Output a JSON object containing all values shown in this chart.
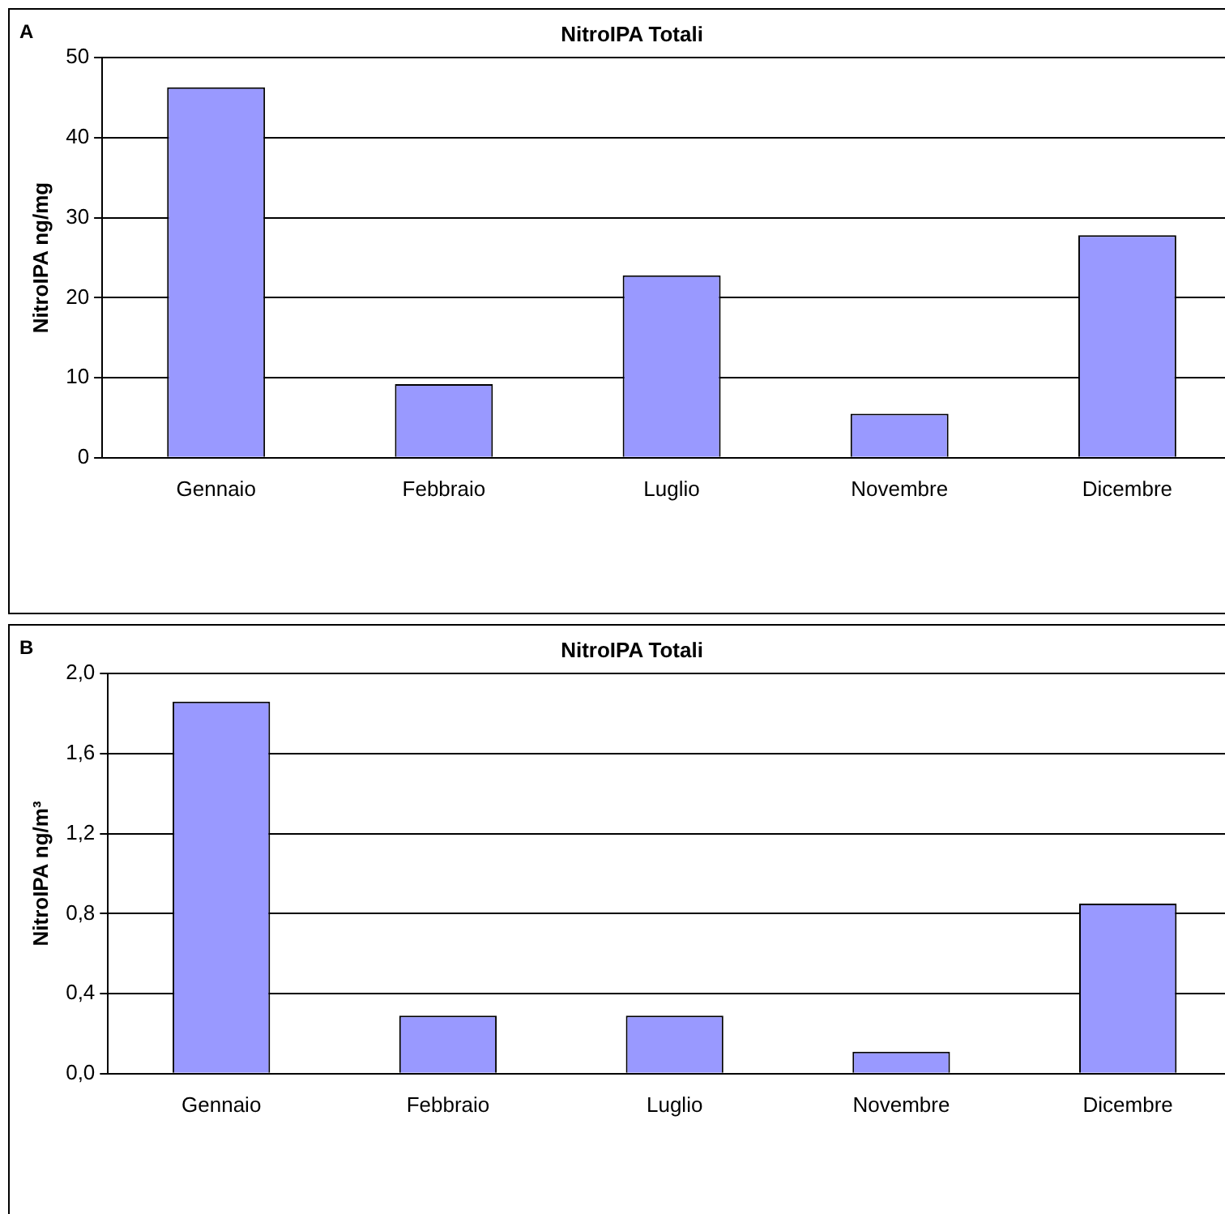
{
  "chart_data": [
    {
      "type": "bar",
      "title": "NitroIPA Totali",
      "annotations": [
        "A"
      ],
      "ylabel": "NitroIPA ng/mg",
      "categories": [
        "Gennaio",
        "Febbraio",
        "Luglio",
        "Novembre",
        "Dicembre"
      ],
      "values": [
        46.3,
        9.2,
        22.8,
        5.5,
        27.8
      ],
      "color": "#9999ff",
      "ylim": [
        0,
        50
      ],
      "yticks": [
        0,
        10,
        20,
        30,
        40,
        50
      ],
      "grid": "y",
      "legend": false
    },
    {
      "type": "bar",
      "title": "NitroIPA Totali",
      "annotations": [
        "B"
      ],
      "ylabel": "NitroIPA ng/m³",
      "categories": [
        "Gennaio",
        "Febbraio",
        "Luglio",
        "Novembre",
        "Dicembre"
      ],
      "values": [
        1.86,
        0.29,
        0.29,
        0.11,
        0.85
      ],
      "color": "#9999ff",
      "ylim": [
        0,
        2
      ],
      "yticks": [
        {
          "value": 0,
          "label": "0,0"
        },
        {
          "value": 0.4,
          "label": "0,4"
        },
        {
          "value": 0.8,
          "label": "0,8"
        },
        {
          "value": 1.2,
          "label": "1,2"
        },
        {
          "value": 1.6,
          "label": "1,6"
        },
        {
          "value": 2,
          "label": "2,0"
        }
      ],
      "grid": "y",
      "legend": false
    }
  ]
}
